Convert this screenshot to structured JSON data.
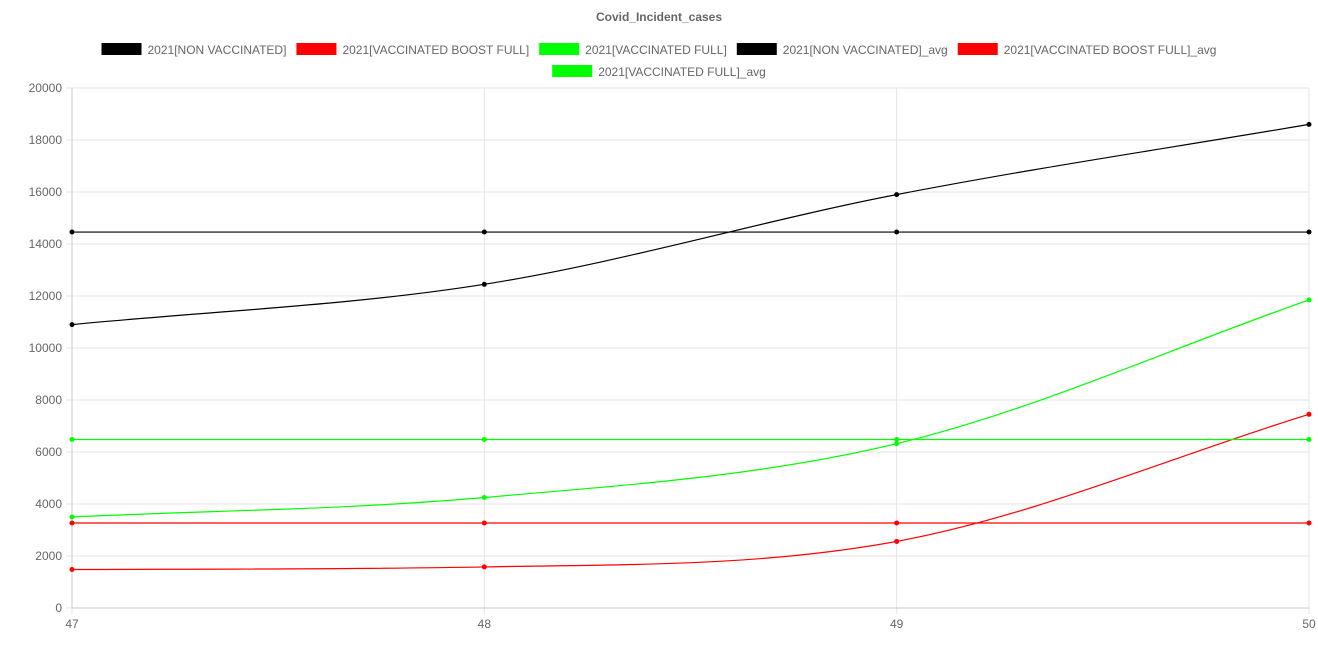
{
  "chart_data": {
    "type": "line",
    "title": "Covid_Incident_cases",
    "xlabel": "",
    "ylabel": "",
    "x": [
      "47",
      "48",
      "49",
      "50"
    ],
    "ylim": [
      0,
      20000
    ],
    "y_ticks": [
      "0",
      "2000",
      "4000",
      "6000",
      "8000",
      "10000",
      "12000",
      "14000",
      "16000",
      "18000",
      "20000"
    ],
    "grid": true,
    "legend_position": "top",
    "series": [
      {
        "name": "2021[NON VACCINATED]",
        "color": "#000000",
        "values": [
          10900,
          12450,
          15900,
          18600
        ]
      },
      {
        "name": "2021[VACCINATED BOOST FULL]",
        "color": "#ff0000",
        "values": [
          1480,
          1580,
          2560,
          7450
        ]
      },
      {
        "name": "2021[VACCINATED FULL]",
        "color": "#00ff00",
        "values": [
          3500,
          4250,
          6320,
          11850
        ]
      },
      {
        "name": "2021[NON VACCINATED]_avg",
        "color": "#000000",
        "values": [
          14460,
          14460,
          14460,
          14460
        ]
      },
      {
        "name": "2021[VACCINATED BOOST FULL]_avg",
        "color": "#ff0000",
        "values": [
          3270,
          3270,
          3270,
          3270
        ]
      },
      {
        "name": "2021[VACCINATED FULL]_avg",
        "color": "#00ff00",
        "values": [
          6480,
          6480,
          6480,
          6480
        ]
      }
    ]
  }
}
